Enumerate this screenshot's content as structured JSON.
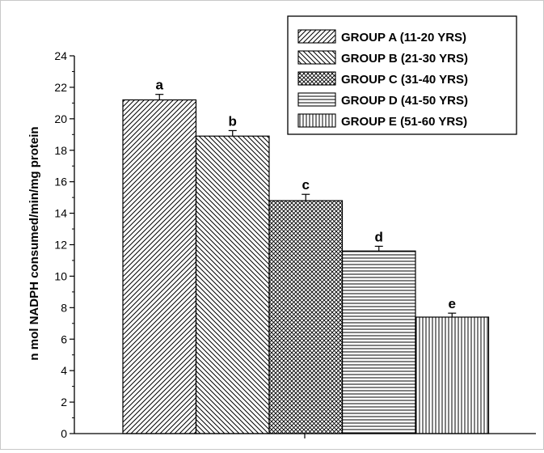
{
  "chart_data": {
    "type": "bar",
    "ylabel": "n mol NADPH consumed/min/mg protein",
    "xlabel": "",
    "ylim": [
      0,
      24
    ],
    "yticks": [
      0,
      2,
      4,
      6,
      8,
      10,
      12,
      14,
      16,
      18,
      20,
      22,
      24
    ],
    "yticks_labels": [
      "0",
      "2",
      "4",
      "6",
      "8",
      "10",
      "12",
      "14",
      "16",
      "18",
      "20",
      "22",
      "24"
    ],
    "grid": false,
    "legend_position": "top-right",
    "categories": [
      "GROUP A (11-20 YRS)",
      "GROUP B (21-30 YRS)",
      "GROUP C (31-40 YRS)",
      "GROUP D (41-50 YRS)",
      "GROUP E (51-60 YRS)"
    ],
    "values": [
      21.2,
      18.9,
      14.8,
      11.6,
      7.4
    ],
    "errors": [
      0.35,
      0.35,
      0.4,
      0.3,
      0.25
    ],
    "annotations": [
      "a",
      "b",
      "c",
      "d",
      "e"
    ],
    "patterns": [
      "diag-right",
      "diag-left",
      "crosshatch",
      "horizontal",
      "vertical"
    ],
    "colors": {
      "bar_fill": "#ffffff",
      "stroke": "#000000"
    }
  }
}
